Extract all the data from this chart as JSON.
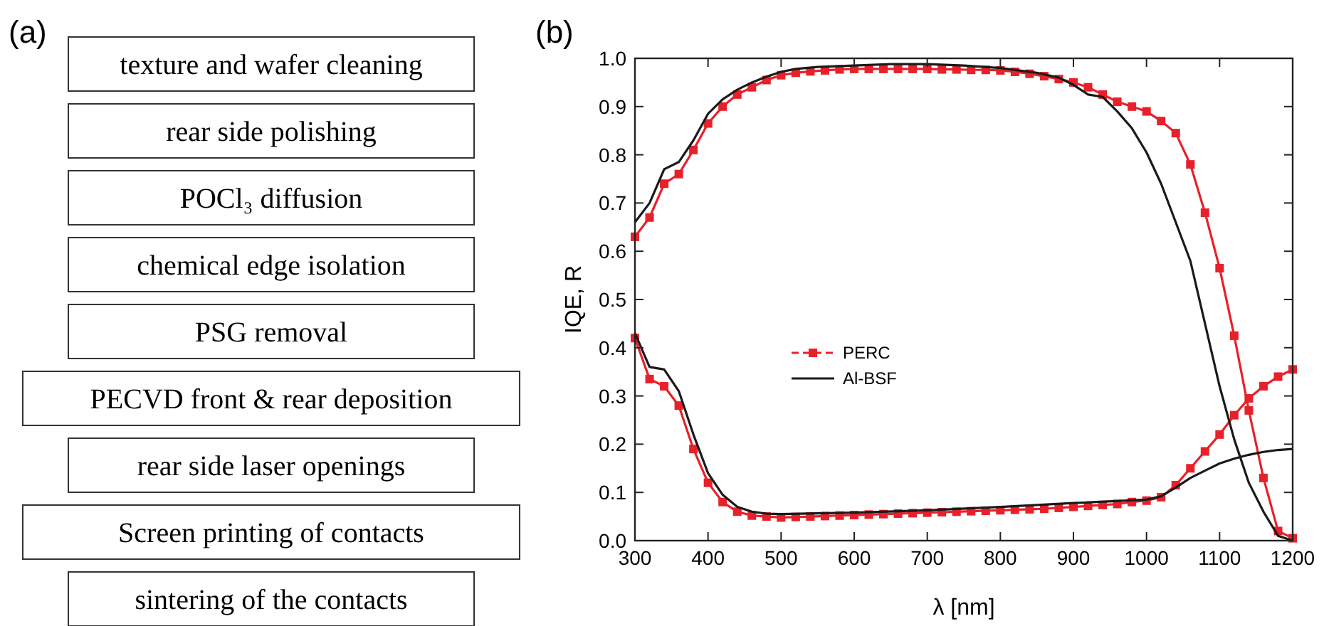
{
  "chart_data": [
    {
      "type": "other",
      "title": "(a)",
      "annotations": [
        "texture and wafer cleaning",
        "rear side polishing",
        "POCl₃ diffusion",
        "chemical edge isolation",
        "PSG removal",
        "PECVD front & rear deposition",
        "rear side laser openings",
        "Screen printing of contacts",
        "sintering of the contacts"
      ]
    },
    {
      "type": "line",
      "title": "(b)",
      "xlabel": "λ [nm]",
      "ylabel": "IQE, R",
      "xlim": [
        300,
        1200
      ],
      "xticks": [
        300,
        400,
        500,
        600,
        700,
        800,
        900,
        1000,
        1100,
        1200
      ],
      "ylim": [
        0,
        1
      ],
      "yticks": [
        {
          "value": 0,
          "label": "0.0"
        },
        {
          "value": 0.1,
          "label": "0.1"
        },
        {
          "value": 0.2,
          "label": "0.2"
        },
        {
          "value": 0.3,
          "label": "0.3"
        },
        {
          "value": 0.4,
          "label": "0.4"
        },
        {
          "value": 0.5,
          "label": "0.5"
        },
        {
          "value": 0.6,
          "label": "0.6"
        },
        {
          "value": 0.7,
          "label": "0.7"
        },
        {
          "value": 0.8,
          "label": "0.8"
        },
        {
          "value": 0.9,
          "label": "0.9"
        },
        {
          "value": 1,
          "label": "1.0"
        }
      ],
      "legend": "left",
      "grid": false,
      "series": [
        {
          "name": "PERC",
          "color": "#e8202a",
          "marker": "square",
          "x": [
            300,
            320,
            340,
            360,
            380,
            400,
            420,
            440,
            460,
            480,
            500,
            520,
            540,
            560,
            580,
            600,
            620,
            640,
            660,
            680,
            700,
            720,
            740,
            760,
            780,
            800,
            820,
            840,
            860,
            880,
            900,
            920,
            940,
            960,
            980,
            1000,
            1020,
            1040,
            1060,
            1080,
            1100,
            1120,
            1140,
            1160,
            1180,
            1200
          ],
          "values": [
            0.63,
            0.67,
            0.74,
            0.76,
            0.81,
            0.865,
            0.9,
            0.925,
            0.94,
            0.955,
            0.965,
            0.97,
            0.973,
            0.975,
            0.977,
            0.978,
            0.978,
            0.978,
            0.978,
            0.978,
            0.978,
            0.977,
            0.977,
            0.976,
            0.976,
            0.975,
            0.972,
            0.968,
            0.963,
            0.957,
            0.95,
            0.94,
            0.925,
            0.91,
            0.9,
            0.89,
            0.87,
            0.845,
            0.78,
            0.68,
            0.565,
            0.425,
            0.27,
            0.13,
            0.02,
            0.005
          ]
        },
        {
          "color": "#e8202a",
          "marker": "square",
          "x": [
            300,
            320,
            340,
            360,
            380,
            400,
            420,
            440,
            460,
            480,
            500,
            520,
            540,
            560,
            580,
            600,
            620,
            640,
            660,
            680,
            700,
            720,
            740,
            760,
            780,
            800,
            820,
            840,
            860,
            880,
            900,
            920,
            940,
            960,
            980,
            1000,
            1020,
            1040,
            1060,
            1080,
            1100,
            1120,
            1140,
            1160,
            1180,
            1200
          ],
          "values": [
            0.42,
            0.335,
            0.32,
            0.28,
            0.19,
            0.12,
            0.08,
            0.06,
            0.052,
            0.05,
            0.048,
            0.049,
            0.05,
            0.051,
            0.052,
            0.053,
            0.054,
            0.055,
            0.056,
            0.057,
            0.058,
            0.059,
            0.06,
            0.061,
            0.062,
            0.063,
            0.064,
            0.065,
            0.066,
            0.068,
            0.07,
            0.072,
            0.074,
            0.076,
            0.08,
            0.083,
            0.09,
            0.115,
            0.15,
            0.185,
            0.22,
            0.26,
            0.295,
            0.32,
            0.34,
            0.355
          ]
        },
        {
          "name": "Al-BSF",
          "color": "#1a1a1a",
          "marker": "none",
          "x": [
            300,
            320,
            340,
            360,
            380,
            400,
            420,
            440,
            460,
            480,
            500,
            520,
            550,
            600,
            650,
            700,
            750,
            800,
            850,
            880,
            900,
            920,
            940,
            960,
            980,
            1000,
            1020,
            1040,
            1060,
            1080,
            1100,
            1120,
            1140,
            1160,
            1180,
            1200
          ],
          "values": [
            0.66,
            0.7,
            0.77,
            0.785,
            0.83,
            0.885,
            0.915,
            0.935,
            0.95,
            0.962,
            0.972,
            0.978,
            0.982,
            0.985,
            0.988,
            0.988,
            0.985,
            0.98,
            0.97,
            0.96,
            0.945,
            0.925,
            0.92,
            0.89,
            0.855,
            0.805,
            0.74,
            0.66,
            0.58,
            0.45,
            0.32,
            0.21,
            0.12,
            0.06,
            0.01,
            0
          ]
        },
        {
          "color": "#1a1a1a",
          "marker": "none",
          "x": [
            300,
            320,
            340,
            360,
            380,
            400,
            420,
            440,
            460,
            480,
            500,
            600,
            700,
            800,
            900,
            1000,
            1020,
            1040,
            1060,
            1080,
            1100,
            1120,
            1140,
            1160,
            1180,
            1200
          ],
          "values": [
            0.43,
            0.36,
            0.355,
            0.31,
            0.22,
            0.14,
            0.095,
            0.07,
            0.06,
            0.056,
            0.055,
            0.058,
            0.063,
            0.07,
            0.078,
            0.085,
            0.092,
            0.11,
            0.13,
            0.145,
            0.16,
            0.17,
            0.178,
            0.184,
            0.188,
            0.19
          ]
        }
      ]
    }
  ]
}
